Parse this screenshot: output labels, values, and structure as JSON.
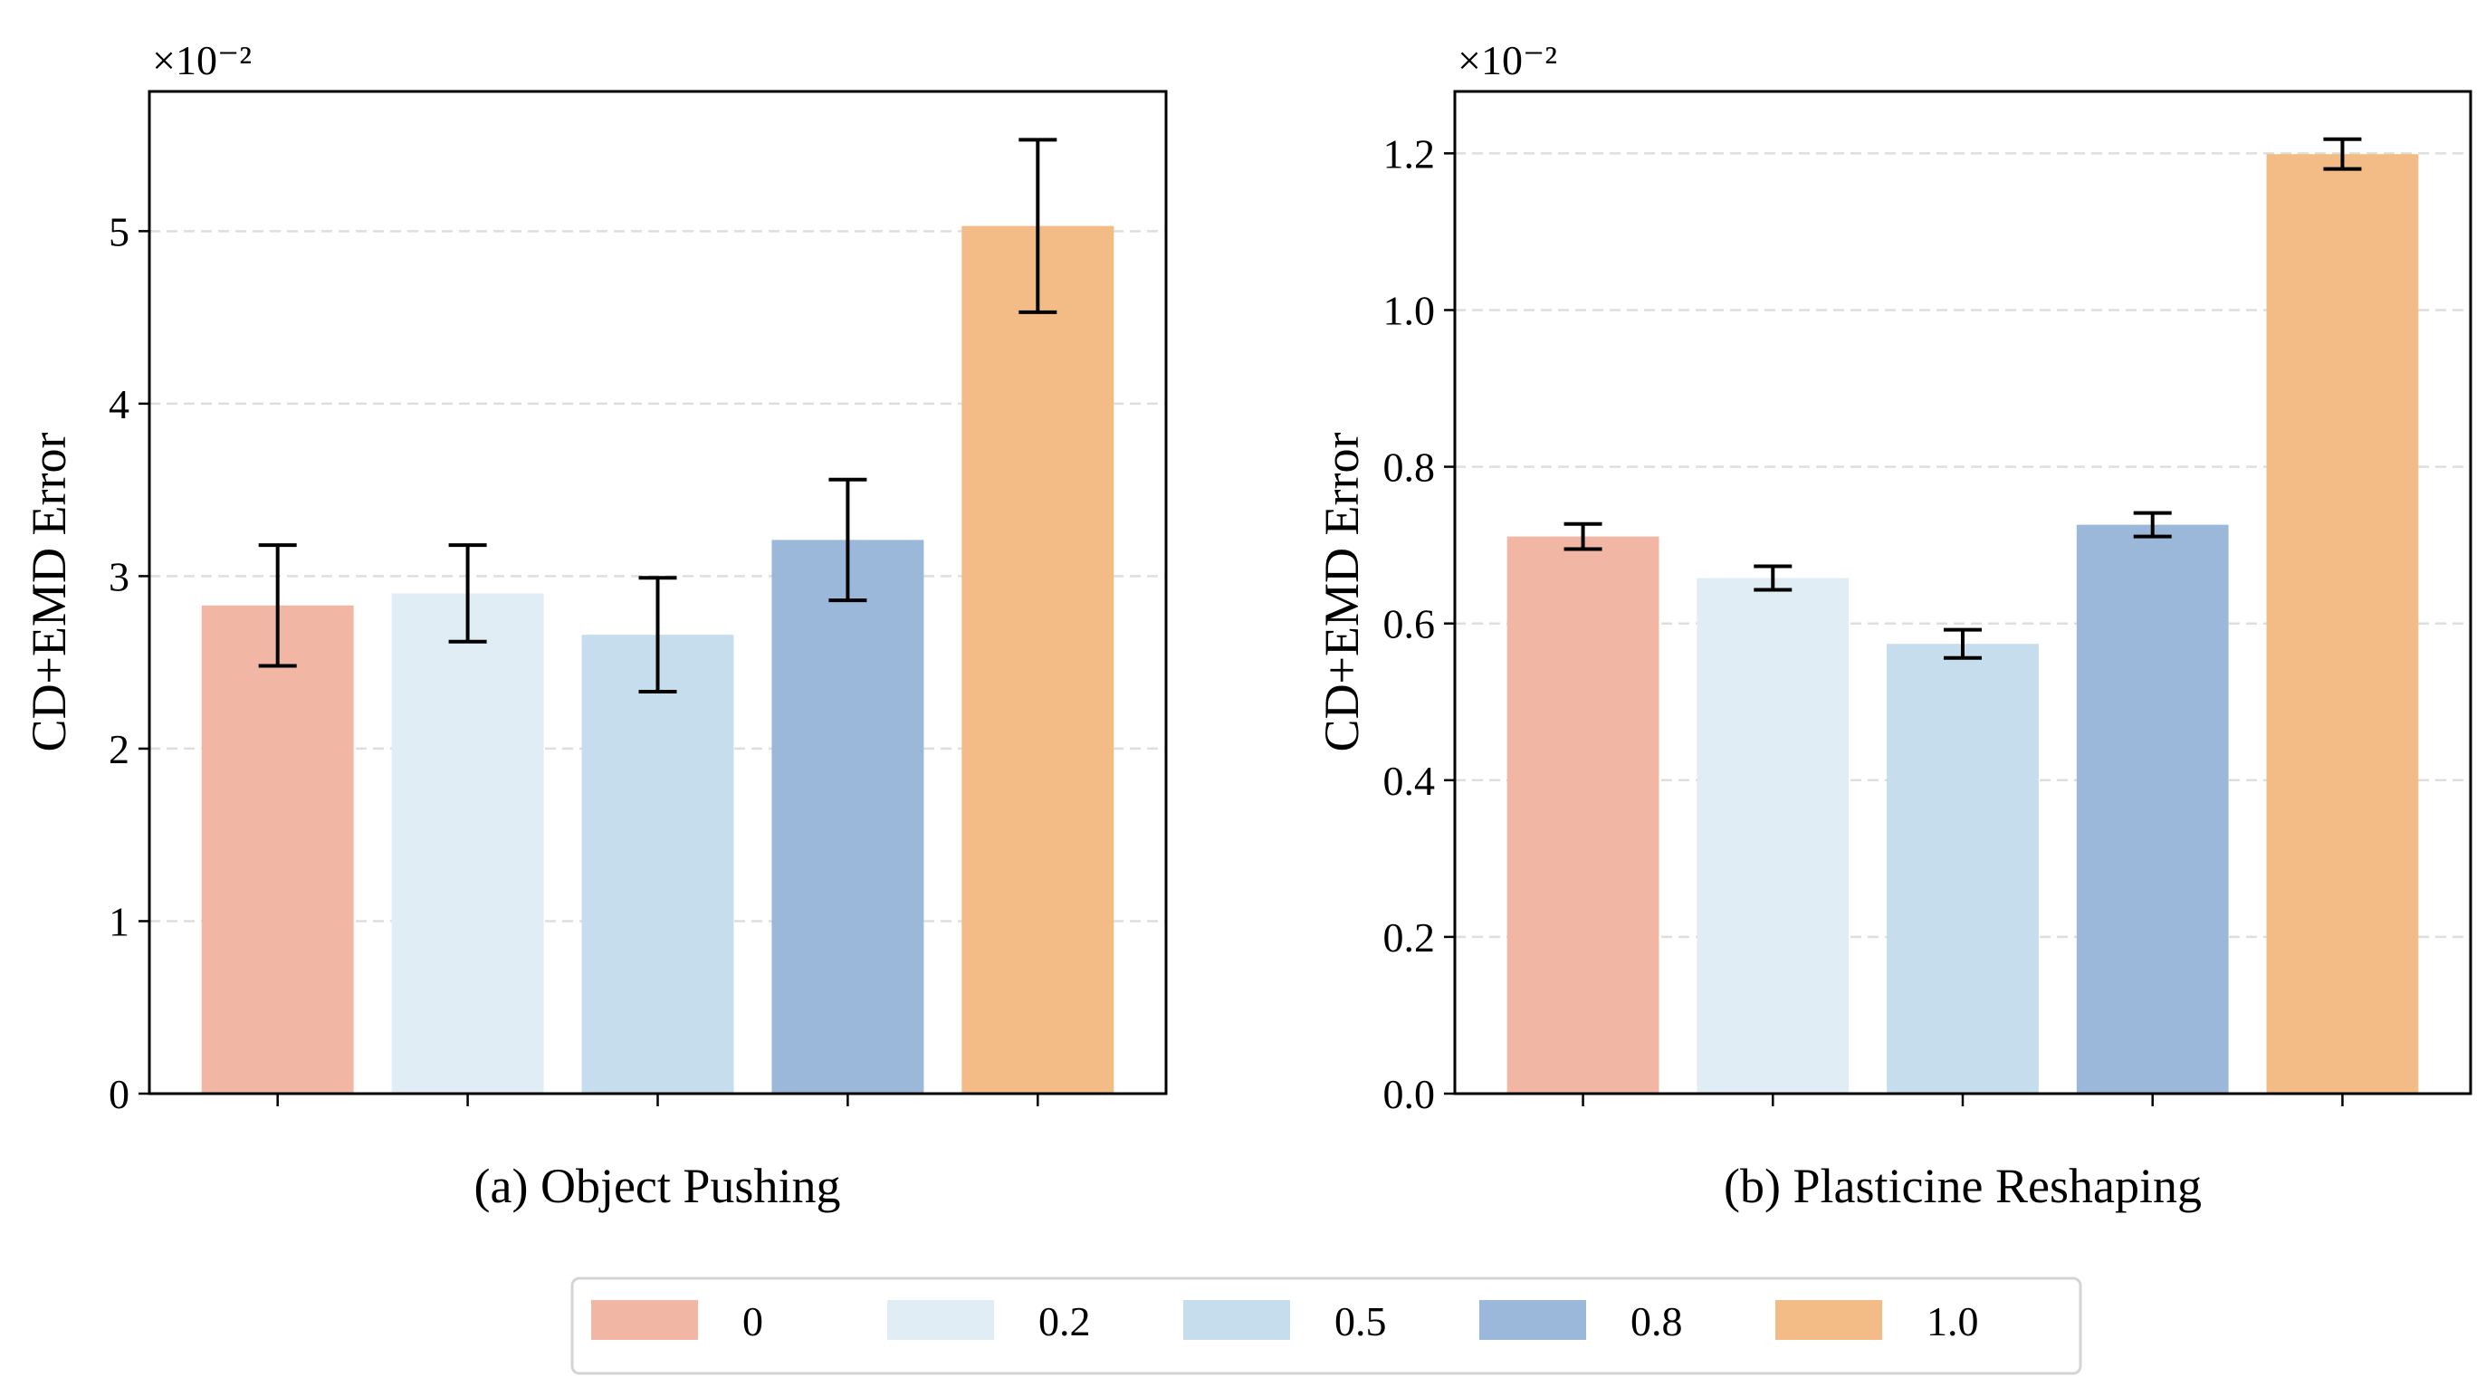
{
  "colors": {
    "0": "#f2b6a5",
    "0.2": "#e0edf5",
    "0.5": "#c5ddec",
    "0.8": "#9bb8da",
    "1.0": "#f3bb86"
  },
  "legend": {
    "placement": "bottom-center",
    "entries": [
      "0",
      "0.2",
      "0.5",
      "0.8",
      "1.0"
    ]
  },
  "chart_data": [
    {
      "type": "bar",
      "title": "(a) Object Pushing",
      "ylabel": "CD+EMD Error",
      "offset_text": "×10⁻²",
      "categories": [
        "0",
        "0.2",
        "0.5",
        "0.8",
        "1.0"
      ],
      "values": [
        2.83,
        2.9,
        2.66,
        3.21,
        5.03
      ],
      "errors": [
        0.35,
        0.28,
        0.33,
        0.35,
        0.5
      ],
      "ylim": [
        0,
        5.81
      ],
      "yticks": [
        0,
        1,
        2,
        3,
        4,
        5
      ],
      "ytick_labels": [
        "0",
        "1",
        "2",
        "3",
        "4",
        "5"
      ],
      "grid": "y dashed"
    },
    {
      "type": "bar",
      "title": "(b) Plasticine Reshaping",
      "ylabel": "CD+EMD Error",
      "offset_text": "×10⁻²",
      "categories": [
        "0",
        "0.2",
        "0.5",
        "0.8",
        "1.0"
      ],
      "values": [
        0.711,
        0.658,
        0.574,
        0.726,
        1.199
      ],
      "errors": [
        0.016,
        0.015,
        0.018,
        0.015,
        0.019
      ],
      "ylim": [
        0,
        1.279
      ],
      "yticks": [
        0,
        0.2,
        0.4,
        0.6,
        0.8,
        1.0,
        1.2
      ],
      "ytick_labels": [
        "0.0",
        "0.2",
        "0.4",
        "0.6",
        "0.8",
        "1.0",
        "1.2"
      ],
      "grid": "y dashed"
    }
  ]
}
